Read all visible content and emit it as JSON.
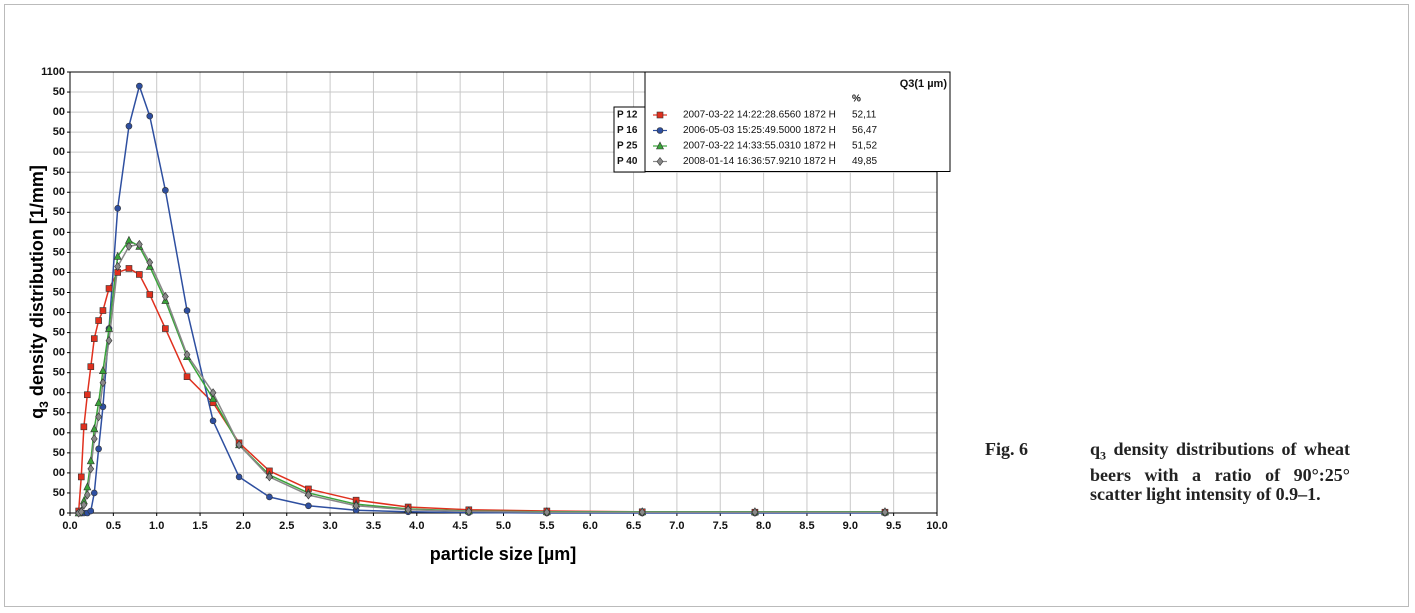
{
  "chart_data": {
    "type": "line",
    "ylabel_prefix": "q",
    "ylabel_sub": "3",
    "ylabel_rest": " density distribution [1/mm]",
    "xlabel": "particle size [µm]",
    "legend_header": "Q3(1 µm)",
    "legend_unit": "%",
    "x": [
      0.1,
      0.13,
      0.16,
      0.2,
      0.24,
      0.28,
      0.33,
      0.38,
      0.45,
      0.55,
      0.68,
      0.8,
      0.92,
      1.1,
      1.35,
      1.65,
      1.95,
      2.3,
      2.75,
      3.3,
      3.9,
      4.6,
      5.5,
      6.6,
      7.9,
      9.4
    ],
    "series": [
      {
        "name": "2007-03-22 14:22:28.6560 1872 H",
        "tag": "P 12",
        "q3": "52,11",
        "color": "#e0301e",
        "marker": "square",
        "values": [
          5,
          90,
          215,
          295,
          365,
          435,
          480,
          505,
          560,
          600,
          610,
          595,
          545,
          460,
          340,
          275,
          175,
          105,
          60,
          32,
          15,
          8,
          5,
          3,
          2,
          2
        ]
      },
      {
        "name": "2006-05-03 15:25:49.5000 1872 H",
        "tag": "P 16",
        "q3": "56,47",
        "color": "#2e4fa0",
        "marker": "circle",
        "values": [
          0,
          0,
          0,
          0,
          5,
          50,
          160,
          265,
          460,
          760,
          965,
          1065,
          990,
          805,
          505,
          230,
          90,
          40,
          18,
          7,
          3,
          1,
          0,
          0,
          0,
          0
        ]
      },
      {
        "name": "2007-03-22 14:33:55.0310 1872 H",
        "tag": "P 25",
        "q3": "51,52",
        "color": "#3aa43a",
        "marker": "triangle",
        "values": [
          0,
          5,
          30,
          65,
          130,
          210,
          275,
          355,
          460,
          640,
          680,
          665,
          615,
          530,
          390,
          285,
          170,
          95,
          50,
          22,
          10,
          5,
          3,
          3,
          3,
          3
        ]
      },
      {
        "name": "2008-01-14 16:36:57.9210 1872 H",
        "tag": "P 40",
        "q3": "49,85",
        "color": "#888888",
        "marker": "diamond",
        "values": [
          0,
          3,
          20,
          45,
          110,
          185,
          240,
          325,
          430,
          615,
          665,
          670,
          625,
          540,
          395,
          300,
          170,
          90,
          45,
          18,
          8,
          4,
          2,
          2,
          2,
          2
        ]
      }
    ],
    "xlim": [
      0,
      10
    ],
    "xticks": [
      {
        "value": 0,
        "label": "0.0"
      },
      0.5,
      {
        "value": 1,
        "label": "1.0"
      },
      1.5,
      {
        "value": 2,
        "label": "2.0"
      },
      2.5,
      {
        "value": 3,
        "label": "3.0"
      },
      3.5,
      {
        "value": 4,
        "label": "4.0"
      },
      4.5,
      {
        "value": 5,
        "label": "5.0"
      },
      5.5,
      {
        "value": 6,
        "label": "6.0"
      },
      6.5,
      {
        "value": 7,
        "label": "7.0"
      },
      7.5,
      {
        "value": 8,
        "label": "8.0"
      },
      8.5,
      {
        "value": 9,
        "label": "9.0"
      },
      9.5,
      {
        "value": 10,
        "label": "10.0"
      }
    ],
    "ylim": [
      0,
      1100
    ],
    "yticks": [
      0,
      {
        "value": 50,
        "label": "50"
      },
      {
        "value": 100,
        "label": "00"
      },
      {
        "value": 150,
        "label": "50"
      },
      {
        "value": 200,
        "label": "00"
      },
      {
        "value": 250,
        "label": "50"
      },
      {
        "value": 300,
        "label": "00"
      },
      {
        "value": 350,
        "label": "50"
      },
      {
        "value": 400,
        "label": "00"
      },
      {
        "value": 450,
        "label": "50"
      },
      {
        "value": 500,
        "label": "00"
      },
      {
        "value": 550,
        "label": "50"
      },
      {
        "value": 600,
        "label": "00"
      },
      {
        "value": 650,
        "label": "50"
      },
      {
        "value": 700,
        "label": "00"
      },
      {
        "value": 750,
        "label": "50"
      },
      {
        "value": 800,
        "label": "00"
      },
      {
        "value": 850,
        "label": "50"
      },
      {
        "value": 900,
        "label": "00"
      },
      {
        "value": 950,
        "label": "50"
      },
      {
        "value": 1000,
        "label": "00"
      },
      {
        "value": 1050,
        "label": "50"
      },
      1100
    ],
    "grid": true
  },
  "figure": {
    "label": "Fig. 6",
    "caption_prefix": "q",
    "caption_sub": "3",
    "caption_rest": " density distributions of wheat beers with a ratio of 90°:25° scatter light intensity of 0.9–1."
  }
}
